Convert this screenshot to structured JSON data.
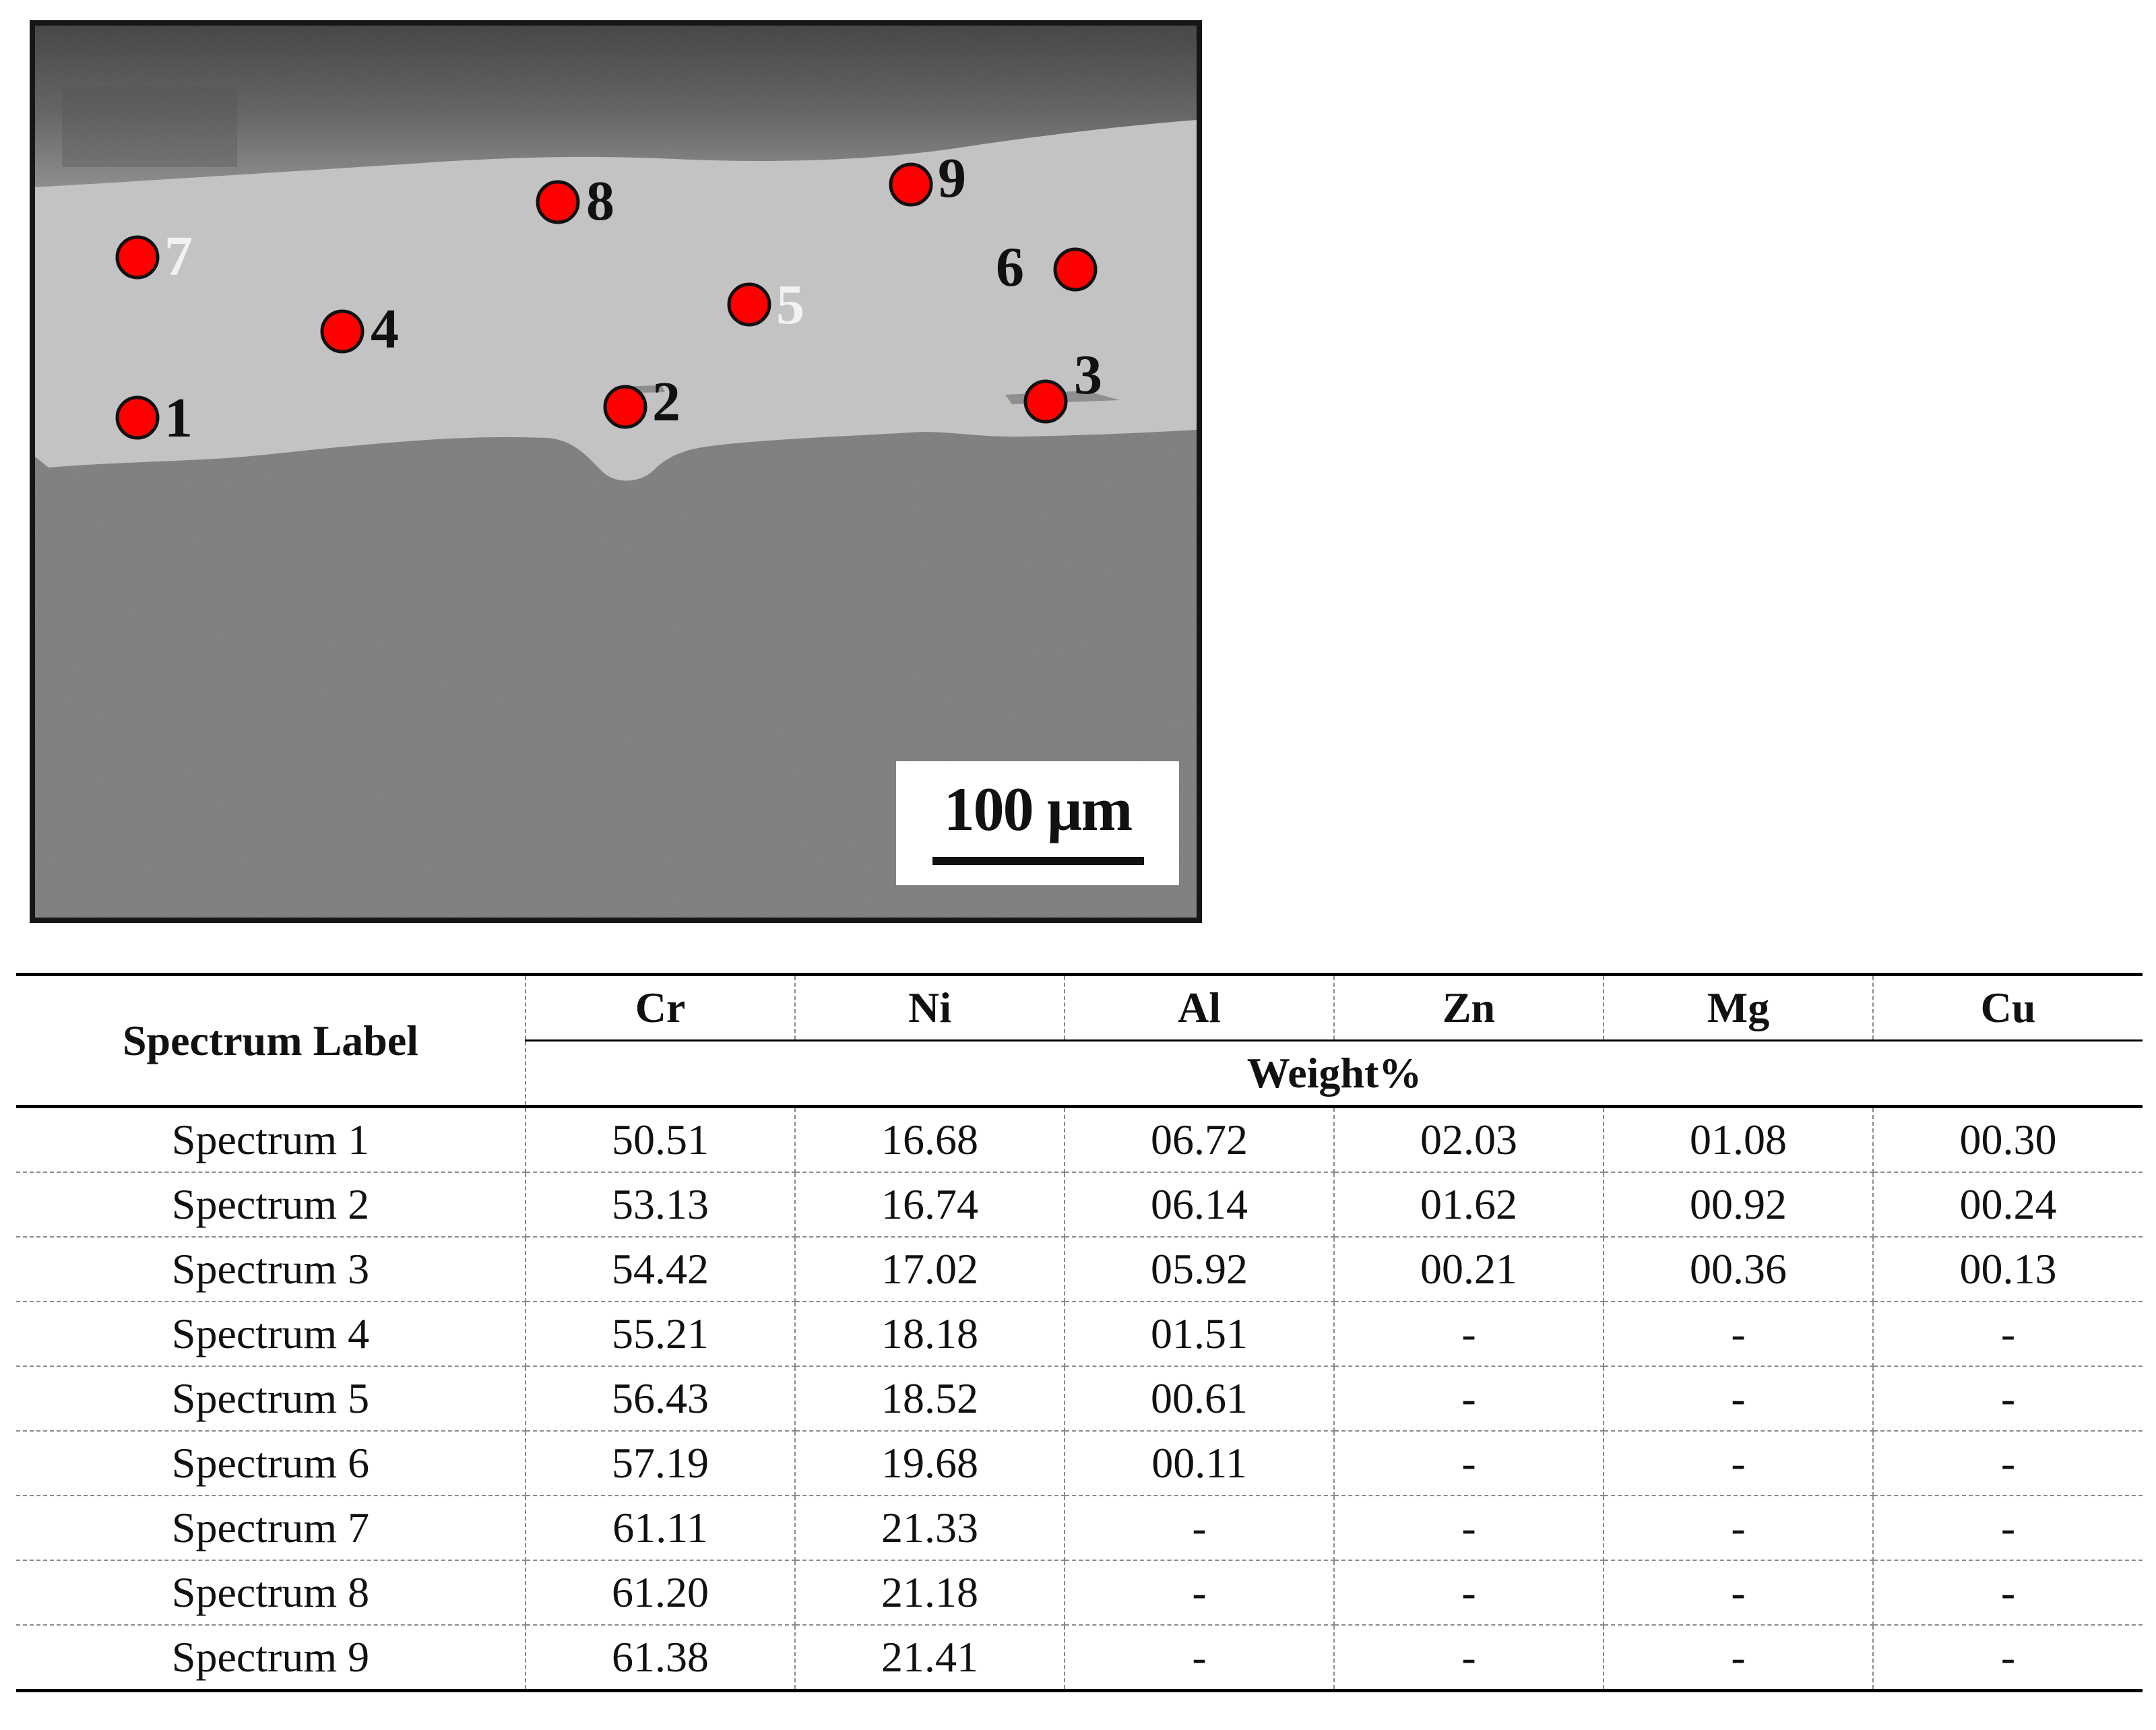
{
  "micrograph": {
    "points": [
      {
        "id": "1",
        "label": "1"
      },
      {
        "id": "2",
        "label": "2"
      },
      {
        "id": "3",
        "label": "3"
      },
      {
        "id": "4",
        "label": "4"
      },
      {
        "id": "5",
        "label": "5"
      },
      {
        "id": "6",
        "label": "6"
      },
      {
        "id": "7",
        "label": "7"
      },
      {
        "id": "8",
        "label": "8"
      },
      {
        "id": "9",
        "label": "9"
      }
    ],
    "marker_color": "#ff0000",
    "scale_bar": "100 µm"
  },
  "table": {
    "row_header": "Spectrum Label",
    "elements": [
      "Cr",
      "Ni",
      "Al",
      "Zn",
      "Mg",
      "Cu"
    ],
    "unit_header": "Weight%",
    "rows": [
      {
        "label": "Spectrum 1",
        "values": [
          "50.51",
          "16.68",
          "06.72",
          "02.03",
          "01.08",
          "00.30"
        ]
      },
      {
        "label": "Spectrum 2",
        "values": [
          "53.13",
          "16.74",
          "06.14",
          "01.62",
          "00.92",
          "00.24"
        ]
      },
      {
        "label": "Spectrum 3",
        "values": [
          "54.42",
          "17.02",
          "05.92",
          "00.21",
          "00.36",
          "00.13"
        ]
      },
      {
        "label": "Spectrum 4",
        "values": [
          "55.21",
          "18.18",
          "01.51",
          "-",
          "-",
          "-"
        ]
      },
      {
        "label": "Spectrum 5",
        "values": [
          "56.43",
          "18.52",
          "00.61",
          "-",
          "-",
          "-"
        ]
      },
      {
        "label": "Spectrum 6",
        "values": [
          "57.19",
          "19.68",
          "00.11",
          "-",
          "-",
          "-"
        ]
      },
      {
        "label": "Spectrum 7",
        "values": [
          "61.11",
          "21.33",
          "-",
          "-",
          "-",
          "-"
        ]
      },
      {
        "label": "Spectrum 8",
        "values": [
          "61.20",
          "21.18",
          "-",
          "-",
          "-",
          "-"
        ]
      },
      {
        "label": "Spectrum 9",
        "values": [
          "61.38",
          "21.41",
          "-",
          "-",
          "-",
          "-"
        ]
      }
    ]
  }
}
